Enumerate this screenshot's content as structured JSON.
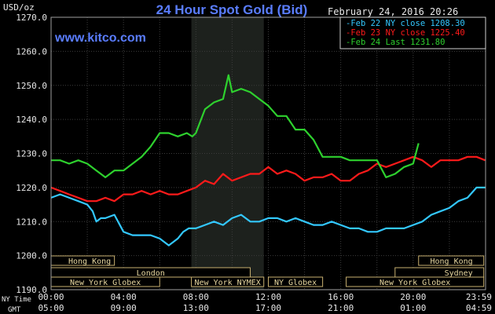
{
  "chart_data": {
    "type": "line",
    "title": "24 Hour Spot Gold (Bid)",
    "date_label": "February 24, 2016 20:26",
    "watermark": "www.kitco.com",
    "ylabel": "USD/oz",
    "ylim": [
      1190,
      1270
    ],
    "yticks": [
      "1270.0",
      "1260.0",
      "1250.0",
      "1240.0",
      "1230.0",
      "1220.0",
      "1210.0",
      "1200.0",
      "1190.0"
    ],
    "ytick_values": [
      1270,
      1260,
      1250,
      1240,
      1230,
      1220,
      1210,
      1200,
      1190
    ],
    "x_range_hours": [
      0,
      24
    ],
    "x_label_row1": "NY Time",
    "x_label_row2": "GMT",
    "xticks_ny": [
      "00:00",
      "04:00",
      "08:00",
      "12:00",
      "16:00",
      "20:00",
      "23:59"
    ],
    "xticks_gmt": [
      "05:00",
      "09:00",
      "13:00",
      "17:00",
      "21:00",
      "01:00",
      "04:59"
    ],
    "xtick_hours": [
      0,
      4,
      8,
      12,
      16,
      20,
      23.98
    ],
    "nymex_hours": [
      7.75,
      11.75
    ],
    "markets": [
      {
        "name": "Hong Kong",
        "row": 0,
        "start": 0.0,
        "end": 3.5,
        "align": "left"
      },
      {
        "name": "Hong Kong",
        "row": 0,
        "start": 20.3,
        "end": 23.9,
        "align": "right"
      },
      {
        "name": "London",
        "row": 1,
        "start": 0.0,
        "end": 11.0,
        "align": "center"
      },
      {
        "name": "Sydney",
        "row": 1,
        "start": 19.0,
        "end": 23.9,
        "align": "right"
      },
      {
        "name": "New York Globex",
        "row": 2,
        "start": 0.0,
        "end": 6.0,
        "align": "center"
      },
      {
        "name": "New York NYMEX",
        "row": 2,
        "start": 7.75,
        "end": 11.75,
        "align": "center"
      },
      {
        "name": "NY Globex",
        "row": 2,
        "start": 12.0,
        "end": 15.0,
        "align": "center"
      },
      {
        "name": "New York Globex",
        "row": 2,
        "start": 16.3,
        "end": 23.9,
        "align": "center"
      }
    ],
    "series": [
      {
        "name": "Feb 22 NY close 1208.30",
        "color": "#33c8ff",
        "x": [
          0,
          0.5,
          1,
          1.5,
          2,
          2.3,
          2.5,
          2.75,
          3,
          3.5,
          4,
          4.5,
          5,
          5.5,
          6,
          6.5,
          7,
          7.3,
          7.6,
          8,
          8.5,
          9,
          9.5,
          10,
          10.5,
          11,
          11.5,
          12,
          12.5,
          13,
          13.5,
          14,
          14.5,
          15,
          15.5,
          16,
          16.5,
          17,
          17.5,
          18,
          18.5,
          19,
          19.5,
          20,
          20.5,
          21,
          21.5,
          22,
          22.5,
          23,
          23.5,
          23.98
        ],
        "y": [
          1217,
          1218,
          1217,
          1216,
          1215,
          1213,
          1210,
          1211,
          1211,
          1212,
          1207,
          1206,
          1206,
          1206,
          1205,
          1203,
          1205,
          1207,
          1208,
          1208,
          1209,
          1210,
          1209,
          1211,
          1212,
          1210,
          1210,
          1211,
          1211,
          1210,
          1211,
          1210,
          1209,
          1209,
          1210,
          1209,
          1208,
          1208,
          1207,
          1207,
          1208,
          1208,
          1208,
          1209,
          1210,
          1212,
          1213,
          1214,
          1216,
          1217,
          1220,
          1220
        ]
      },
      {
        "name": "Feb 23 NY close 1225.40",
        "color": "#ff1a1a",
        "x": [
          0,
          0.5,
          1,
          1.5,
          2,
          2.5,
          3,
          3.5,
          4,
          4.5,
          5,
          5.5,
          6,
          6.5,
          7,
          7.5,
          8,
          8.5,
          9,
          9.5,
          10,
          10.5,
          11,
          11.5,
          12,
          12.5,
          13,
          13.5,
          14,
          14.5,
          15,
          15.5,
          16,
          16.5,
          17,
          17.5,
          18,
          18.5,
          19,
          19.5,
          20,
          20.5,
          21,
          21.5,
          22,
          22.5,
          23,
          23.5,
          23.98
        ],
        "y": [
          1220,
          1219,
          1218,
          1217,
          1216,
          1216,
          1217,
          1216,
          1218,
          1218,
          1219,
          1218,
          1219,
          1218,
          1218,
          1219,
          1220,
          1222,
          1221,
          1224,
          1222,
          1223,
          1224,
          1224,
          1226,
          1224,
          1225,
          1224,
          1222,
          1223,
          1223,
          1224,
          1222,
          1222,
          1224,
          1225,
          1227,
          1226,
          1227,
          1228,
          1229,
          1228,
          1226,
          1228,
          1228,
          1228,
          1229,
          1229,
          1228
        ]
      },
      {
        "name": "Feb 24 Last 1231.80",
        "color": "#2ed12e",
        "x": [
          0,
          0.5,
          1,
          1.5,
          2,
          2.5,
          3,
          3.5,
          4,
          4.5,
          5,
          5.5,
          6,
          6.5,
          7,
          7.5,
          7.8,
          8,
          8.5,
          9,
          9.5,
          9.8,
          10,
          10.5,
          11,
          11.5,
          12,
          12.5,
          13,
          13.5,
          14,
          14.5,
          15,
          15.5,
          16,
          16.5,
          17,
          17.5,
          18,
          18.5,
          19,
          19.5,
          20,
          20.3
        ],
        "y": [
          1228,
          1228,
          1227,
          1228,
          1227,
          1225,
          1223,
          1225,
          1225,
          1227,
          1229,
          1232,
          1236,
          1236,
          1235,
          1236,
          1235,
          1236,
          1243,
          1245,
          1246,
          1253,
          1248,
          1249,
          1248,
          1246,
          1244,
          1241,
          1241,
          1237,
          1237,
          1234,
          1229,
          1229,
          1229,
          1228,
          1228,
          1228,
          1228,
          1223,
          1224,
          1226,
          1227,
          1233
        ]
      }
    ],
    "grid": true,
    "legend_position": "top-right"
  }
}
